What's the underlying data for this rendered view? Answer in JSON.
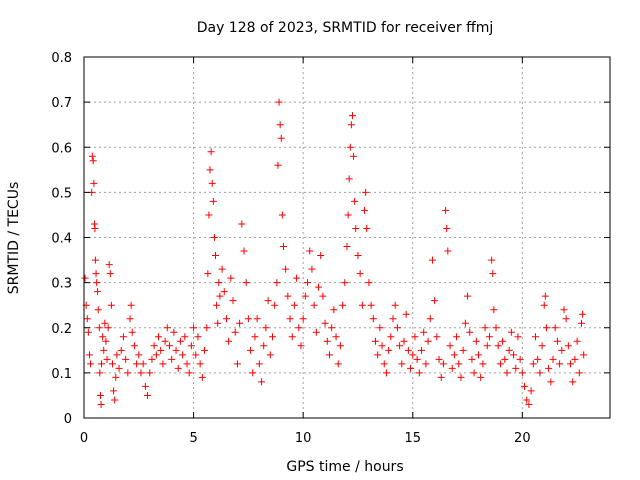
{
  "chart_data": {
    "type": "scatter",
    "title": "Day 128 of 2023, SRMTID for receiver ffmj",
    "xlabel": "GPS time / hours",
    "ylabel": "SRMTID / TECUs",
    "xlim": [
      0,
      24
    ],
    "ylim": [
      0,
      0.8
    ],
    "x_ticks": [
      0,
      5,
      10,
      15,
      20
    ],
    "x_tick_labels": [
      "0",
      "5",
      "10",
      "15",
      "20"
    ],
    "y_ticks": [
      0,
      0.1,
      0.2,
      0.3,
      0.4,
      0.5,
      0.6,
      0.7,
      0.8
    ],
    "y_tick_labels": [
      "0",
      "0.1",
      "0.2",
      "0.3",
      "0.4",
      "0.5",
      "0.6",
      "0.7",
      "0.8"
    ],
    "grid": true,
    "marker": "+",
    "series": [
      {
        "name": "SRMTID",
        "color": "#ff0000",
        "points": [
          [
            0.05,
            0.31
          ],
          [
            0.1,
            0.25
          ],
          [
            0.15,
            0.22
          ],
          [
            0.2,
            0.19
          ],
          [
            0.25,
            0.14
          ],
          [
            0.3,
            0.12
          ],
          [
            0.35,
            0.5
          ],
          [
            0.38,
            0.58
          ],
          [
            0.42,
            0.57
          ],
          [
            0.45,
            0.52
          ],
          [
            0.48,
            0.43
          ],
          [
            0.5,
            0.42
          ],
          [
            0.52,
            0.35
          ],
          [
            0.55,
            0.32
          ],
          [
            0.58,
            0.3
          ],
          [
            0.62,
            0.28
          ],
          [
            0.65,
            0.24
          ],
          [
            0.7,
            0.2
          ],
          [
            0.72,
            0.1
          ],
          [
            0.75,
            0.05
          ],
          [
            0.78,
            0.03
          ],
          [
            0.8,
            0.12
          ],
          [
            0.85,
            0.18
          ],
          [
            0.9,
            0.15
          ],
          [
            0.95,
            0.21
          ],
          [
            1.0,
            0.17
          ],
          [
            1.05,
            0.13
          ],
          [
            1.1,
            0.2
          ],
          [
            1.15,
            0.34
          ],
          [
            1.2,
            0.32
          ],
          [
            1.25,
            0.25
          ],
          [
            1.3,
            0.12
          ],
          [
            1.35,
            0.06
          ],
          [
            1.4,
            0.04
          ],
          [
            1.45,
            0.09
          ],
          [
            1.5,
            0.14
          ],
          [
            1.6,
            0.11
          ],
          [
            1.7,
            0.15
          ],
          [
            1.8,
            0.18
          ],
          [
            1.9,
            0.13
          ],
          [
            2.0,
            0.1
          ],
          [
            2.1,
            0.22
          ],
          [
            2.15,
            0.25
          ],
          [
            2.2,
            0.19
          ],
          [
            2.3,
            0.16
          ],
          [
            2.4,
            0.12
          ],
          [
            2.5,
            0.14
          ],
          [
            2.6,
            0.1
          ],
          [
            2.7,
            0.12
          ],
          [
            2.8,
            0.07
          ],
          [
            2.9,
            0.05
          ],
          [
            3.0,
            0.1
          ],
          [
            3.1,
            0.13
          ],
          [
            3.2,
            0.16
          ],
          [
            3.3,
            0.14
          ],
          [
            3.4,
            0.18
          ],
          [
            3.5,
            0.15
          ],
          [
            3.6,
            0.12
          ],
          [
            3.7,
            0.17
          ],
          [
            3.8,
            0.2
          ],
          [
            3.9,
            0.16
          ],
          [
            4.0,
            0.13
          ],
          [
            4.1,
            0.19
          ],
          [
            4.2,
            0.15
          ],
          [
            4.3,
            0.11
          ],
          [
            4.4,
            0.17
          ],
          [
            4.5,
            0.14
          ],
          [
            4.6,
            0.18
          ],
          [
            4.7,
            0.12
          ],
          [
            4.8,
            0.1
          ],
          [
            4.9,
            0.16
          ],
          [
            5.0,
            0.2
          ],
          [
            5.1,
            0.14
          ],
          [
            5.2,
            0.18
          ],
          [
            5.3,
            0.12
          ],
          [
            5.4,
            0.09
          ],
          [
            5.5,
            0.15
          ],
          [
            5.6,
            0.2
          ],
          [
            5.65,
            0.32
          ],
          [
            5.7,
            0.45
          ],
          [
            5.75,
            0.55
          ],
          [
            5.8,
            0.59
          ],
          [
            5.85,
            0.52
          ],
          [
            5.9,
            0.48
          ],
          [
            5.95,
            0.4
          ],
          [
            6.0,
            0.36
          ],
          [
            6.05,
            0.25
          ],
          [
            6.1,
            0.21
          ],
          [
            6.15,
            0.3
          ],
          [
            6.2,
            0.27
          ],
          [
            6.3,
            0.33
          ],
          [
            6.4,
            0.28
          ],
          [
            6.5,
            0.22
          ],
          [
            6.6,
            0.17
          ],
          [
            6.7,
            0.31
          ],
          [
            6.8,
            0.26
          ],
          [
            6.9,
            0.19
          ],
          [
            7.0,
            0.12
          ],
          [
            7.1,
            0.21
          ],
          [
            7.2,
            0.43
          ],
          [
            7.3,
            0.37
          ],
          [
            7.4,
            0.3
          ],
          [
            7.5,
            0.22
          ],
          [
            7.6,
            0.15
          ],
          [
            7.7,
            0.1
          ],
          [
            7.8,
            0.18
          ],
          [
            7.9,
            0.22
          ],
          [
            8.0,
            0.12
          ],
          [
            8.1,
            0.08
          ],
          [
            8.2,
            0.16
          ],
          [
            8.3,
            0.2
          ],
          [
            8.4,
            0.26
          ],
          [
            8.5,
            0.14
          ],
          [
            8.6,
            0.18
          ],
          [
            8.7,
            0.25
          ],
          [
            8.8,
            0.3
          ],
          [
            8.85,
            0.56
          ],
          [
            8.9,
            0.7
          ],
          [
            8.95,
            0.65
          ],
          [
            9.0,
            0.62
          ],
          [
            9.05,
            0.45
          ],
          [
            9.1,
            0.38
          ],
          [
            9.2,
            0.33
          ],
          [
            9.3,
            0.27
          ],
          [
            9.4,
            0.22
          ],
          [
            9.5,
            0.18
          ],
          [
            9.6,
            0.25
          ],
          [
            9.7,
            0.31
          ],
          [
            9.8,
            0.2
          ],
          [
            9.9,
            0.16
          ],
          [
            10.0,
            0.22
          ],
          [
            10.1,
            0.27
          ],
          [
            10.2,
            0.3
          ],
          [
            10.3,
            0.37
          ],
          [
            10.4,
            0.33
          ],
          [
            10.5,
            0.25
          ],
          [
            10.6,
            0.19
          ],
          [
            10.7,
            0.29
          ],
          [
            10.8,
            0.36
          ],
          [
            10.9,
            0.27
          ],
          [
            11.0,
            0.21
          ],
          [
            11.1,
            0.17
          ],
          [
            11.2,
            0.14
          ],
          [
            11.3,
            0.2
          ],
          [
            11.4,
            0.24
          ],
          [
            11.5,
            0.18
          ],
          [
            11.6,
            0.12
          ],
          [
            11.7,
            0.16
          ],
          [
            11.8,
            0.25
          ],
          [
            11.9,
            0.3
          ],
          [
            12.0,
            0.38
          ],
          [
            12.05,
            0.45
          ],
          [
            12.1,
            0.53
          ],
          [
            12.15,
            0.6
          ],
          [
            12.2,
            0.65
          ],
          [
            12.25,
            0.67
          ],
          [
            12.3,
            0.58
          ],
          [
            12.35,
            0.48
          ],
          [
            12.4,
            0.42
          ],
          [
            12.5,
            0.36
          ],
          [
            12.6,
            0.32
          ],
          [
            12.7,
            0.25
          ],
          [
            12.8,
            0.46
          ],
          [
            12.85,
            0.5
          ],
          [
            12.9,
            0.42
          ],
          [
            13.0,
            0.3
          ],
          [
            13.1,
            0.25
          ],
          [
            13.2,
            0.22
          ],
          [
            13.3,
            0.17
          ],
          [
            13.4,
            0.14
          ],
          [
            13.5,
            0.2
          ],
          [
            13.6,
            0.16
          ],
          [
            13.7,
            0.12
          ],
          [
            13.8,
            0.1
          ],
          [
            13.9,
            0.15
          ],
          [
            14.0,
            0.18
          ],
          [
            14.1,
            0.22
          ],
          [
            14.2,
            0.25
          ],
          [
            14.3,
            0.2
          ],
          [
            14.4,
            0.16
          ],
          [
            14.5,
            0.12
          ],
          [
            14.6,
            0.17
          ],
          [
            14.7,
            0.23
          ],
          [
            14.8,
            0.15
          ],
          [
            14.9,
            0.11
          ],
          [
            15.0,
            0.14
          ],
          [
            15.1,
            0.18
          ],
          [
            15.2,
            0.13
          ],
          [
            15.3,
            0.1
          ],
          [
            15.4,
            0.15
          ],
          [
            15.5,
            0.19
          ],
          [
            15.6,
            0.12
          ],
          [
            15.7,
            0.17
          ],
          [
            15.8,
            0.22
          ],
          [
            15.9,
            0.35
          ],
          [
            16.0,
            0.26
          ],
          [
            16.1,
            0.18
          ],
          [
            16.2,
            0.13
          ],
          [
            16.3,
            0.09
          ],
          [
            16.4,
            0.12
          ],
          [
            16.5,
            0.46
          ],
          [
            16.55,
            0.42
          ],
          [
            16.6,
            0.37
          ],
          [
            16.7,
            0.16
          ],
          [
            16.8,
            0.11
          ],
          [
            16.9,
            0.14
          ],
          [
            17.0,
            0.18
          ],
          [
            17.1,
            0.12
          ],
          [
            17.2,
            0.09
          ],
          [
            17.3,
            0.15
          ],
          [
            17.4,
            0.21
          ],
          [
            17.5,
            0.27
          ],
          [
            17.6,
            0.19
          ],
          [
            17.7,
            0.13
          ],
          [
            17.8,
            0.1
          ],
          [
            17.9,
            0.17
          ],
          [
            18.0,
            0.14
          ],
          [
            18.1,
            0.09
          ],
          [
            18.2,
            0.12
          ],
          [
            18.3,
            0.2
          ],
          [
            18.4,
            0.16
          ],
          [
            18.5,
            0.18
          ],
          [
            18.6,
            0.35
          ],
          [
            18.65,
            0.32
          ],
          [
            18.7,
            0.24
          ],
          [
            18.8,
            0.2
          ],
          [
            18.9,
            0.16
          ],
          [
            19.0,
            0.12
          ],
          [
            19.1,
            0.17
          ],
          [
            19.2,
            0.13
          ],
          [
            19.3,
            0.1
          ],
          [
            19.4,
            0.15
          ],
          [
            19.5,
            0.19
          ],
          [
            19.6,
            0.14
          ],
          [
            19.7,
            0.11
          ],
          [
            19.8,
            0.18
          ],
          [
            19.9,
            0.13
          ],
          [
            20.0,
            0.1
          ],
          [
            20.1,
            0.07
          ],
          [
            20.2,
            0.04
          ],
          [
            20.3,
            0.03
          ],
          [
            20.4,
            0.06
          ],
          [
            20.5,
            0.12
          ],
          [
            20.6,
            0.18
          ],
          [
            20.7,
            0.13
          ],
          [
            20.8,
            0.1
          ],
          [
            20.9,
            0.16
          ],
          [
            21.0,
            0.25
          ],
          [
            21.05,
            0.27
          ],
          [
            21.1,
            0.2
          ],
          [
            21.2,
            0.11
          ],
          [
            21.3,
            0.08
          ],
          [
            21.4,
            0.13
          ],
          [
            21.5,
            0.2
          ],
          [
            21.6,
            0.17
          ],
          [
            21.7,
            0.12
          ],
          [
            21.8,
            0.15
          ],
          [
            21.9,
            0.24
          ],
          [
            22.0,
            0.22
          ],
          [
            22.1,
            0.16
          ],
          [
            22.2,
            0.12
          ],
          [
            22.3,
            0.08
          ],
          [
            22.4,
            0.13
          ],
          [
            22.5,
            0.17
          ],
          [
            22.6,
            0.1
          ],
          [
            22.7,
            0.21
          ],
          [
            22.75,
            0.23
          ],
          [
            22.8,
            0.14
          ]
        ]
      }
    ]
  }
}
